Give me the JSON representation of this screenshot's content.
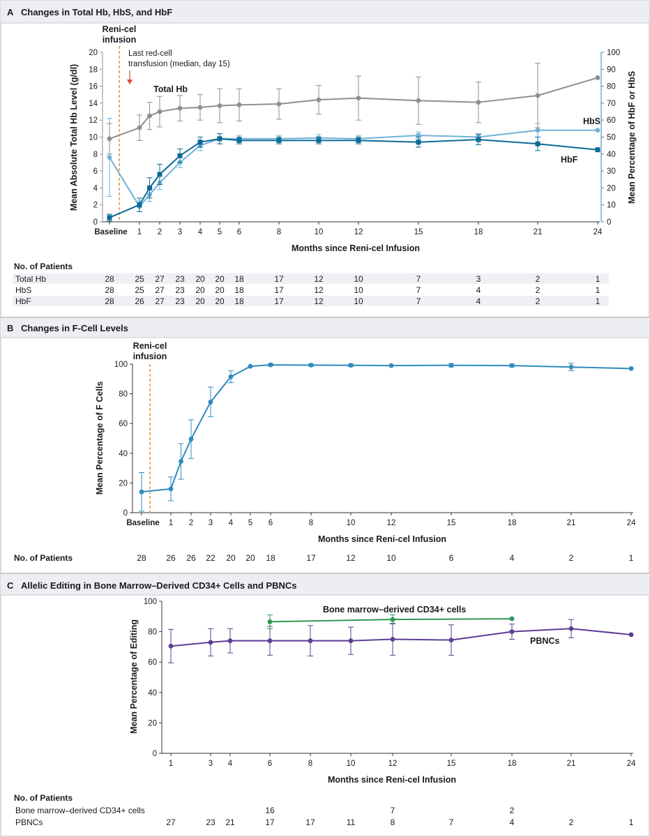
{
  "panels": [
    {
      "label": "A",
      "title": "Changes in Total Hb, HbS, and HbF"
    },
    {
      "label": "B",
      "title": "Changes in F-Cell Levels"
    },
    {
      "label": "C",
      "title": "Allelic Editing in Bone Marrow–Derived CD34+ Cells and PBNCs"
    }
  ],
  "colors": {
    "total_hb": "#8f8f8f",
    "hbs": "#6fb1d8",
    "hbf": "#0c6b96",
    "fcell": "#2f8bbf",
    "cd34": "#2e9a52",
    "pbnc": "#5c3e95",
    "infusion": "#ef8a2a",
    "transfusion": "#d9492f"
  },
  "chart_data": [
    {
      "type": "line",
      "title": "Changes in Total Hb, HbS, and HbF",
      "xlabel": "Months since Reni-cel Infusion",
      "ylabel": "Mean Absolute Total Hb Level (g/dl)",
      "y2label": "Mean Percentage of HbF or HbS",
      "xticks": [
        "Baseline",
        "1",
        "2",
        "3",
        "4",
        "5",
        "6",
        "8",
        "10",
        "12",
        "15",
        "18",
        "21",
        "24"
      ],
      "ylim": [
        0,
        20
      ],
      "yticks": [
        "0",
        "2",
        "4",
        "6",
        "8",
        "10",
        "12",
        "14",
        "16",
        "18",
        "20"
      ],
      "y2lim": [
        0,
        100
      ],
      "y2ticks": [
        "0",
        "10",
        "20",
        "30",
        "40",
        "50",
        "60",
        "70",
        "80",
        "90",
        "100"
      ],
      "annotations": {
        "infusion": "Reni-cel infusion",
        "transfusion": "Last red-cell transfusion (median, day 15)"
      },
      "series": [
        {
          "name": "Total Hb",
          "axis": "left",
          "x": [
            0,
            1,
            1.5,
            2,
            3,
            4,
            5,
            6,
            8,
            10,
            12,
            15,
            18,
            21,
            24
          ],
          "y": [
            9.8,
            11.1,
            12.5,
            13.0,
            13.4,
            13.5,
            13.7,
            13.8,
            13.9,
            14.4,
            14.6,
            14.3,
            14.1,
            14.9,
            17.0
          ],
          "err": [
            1.8,
            1.5,
            1.6,
            1.8,
            1.5,
            1.5,
            2.0,
            1.9,
            1.8,
            1.7,
            2.6,
            2.8,
            2.4,
            3.8,
            null
          ]
        },
        {
          "name": "HbS",
          "axis": "right",
          "x": [
            0,
            1,
            1.5,
            2,
            3,
            4,
            5,
            6,
            8,
            10,
            12,
            15,
            18,
            21,
            24
          ],
          "y": [
            38,
            9,
            16,
            23,
            35,
            45,
            49,
            49,
            49,
            49.5,
            49,
            51,
            50,
            54,
            54
          ],
          "err": [
            23,
            3,
            4,
            4,
            3,
            3,
            3,
            2,
            2,
            2,
            2,
            2,
            2,
            4,
            null
          ]
        },
        {
          "name": "HbF",
          "axis": "right",
          "x": [
            0,
            1,
            1.5,
            2,
            3,
            4,
            5,
            6,
            8,
            10,
            12,
            15,
            18,
            21,
            24
          ],
          "y": [
            2.5,
            10,
            20,
            28,
            39,
            47,
            49,
            48,
            48,
            48,
            48,
            47,
            48.5,
            46,
            42.5
          ],
          "err": [
            2,
            4,
            6,
            6,
            4,
            3,
            3,
            2,
            2,
            2,
            2,
            3,
            3,
            4,
            null
          ]
        }
      ],
      "patients": {
        "header": "No. of Patients",
        "rows": [
          {
            "label": "Total Hb",
            "values": [
              "28",
              "25",
              "27",
              "23",
              "20",
              "20",
              "18",
              "17",
              "12",
              "10",
              "7",
              "3",
              "2",
              "1"
            ]
          },
          {
            "label": "HbS",
            "values": [
              "28",
              "25",
              "27",
              "23",
              "20",
              "20",
              "18",
              "17",
              "12",
              "10",
              "7",
              "4",
              "2",
              "1"
            ]
          },
          {
            "label": "HbF",
            "values": [
              "28",
              "26",
              "27",
              "23",
              "20",
              "20",
              "18",
              "17",
              "12",
              "10",
              "7",
              "4",
              "2",
              "1"
            ]
          }
        ]
      }
    },
    {
      "type": "line",
      "title": "Changes in F-Cell Levels",
      "xlabel": "Months since Reni-cel Infusion",
      "ylabel": "Mean Percentage of F Cells",
      "xticks": [
        "Baseline",
        "1",
        "2",
        "3",
        "4",
        "5",
        "6",
        "8",
        "10",
        "12",
        "15",
        "18",
        "21",
        "24"
      ],
      "ylim": [
        0,
        100
      ],
      "yticks": [
        "0",
        "20",
        "40",
        "60",
        "80",
        "100"
      ],
      "annotations": {
        "infusion": "Reni-cel infusion"
      },
      "series": [
        {
          "name": "",
          "x": [
            0,
            1,
            1.5,
            2,
            3,
            4,
            5,
            6,
            8,
            10,
            12,
            15,
            18,
            21,
            24
          ],
          "y": [
            14,
            16,
            34.5,
            49.5,
            74.5,
            91.5,
            98.5,
            99.5,
            99.3,
            99.2,
            99,
            99.2,
            99,
            98,
            97
          ],
          "err": [
            13,
            8,
            12,
            13,
            10,
            4,
            null,
            0.8,
            0.8,
            0.8,
            null,
            1.2,
            1,
            2.5,
            null
          ]
        }
      ],
      "patients": {
        "header": "No. of Patients",
        "rows": [
          {
            "label": "",
            "values": [
              "28",
              "26",
              "26",
              "22",
              "20",
              "20",
              "18",
              "17",
              "12",
              "10",
              "6",
              "4",
              "2",
              "1"
            ]
          }
        ]
      }
    },
    {
      "type": "line",
      "title": "Allelic Editing in Bone Marrow–Derived CD34+ Cells and PBNCs",
      "xlabel": "Months since Reni-cel Infusion",
      "ylabel": "Mean Percentage of Editing",
      "xticks": [
        "1",
        "3",
        "4",
        "6",
        "8",
        "10",
        "12",
        "15",
        "18",
        "21",
        "24"
      ],
      "ylim": [
        0,
        100
      ],
      "yticks": [
        "0",
        "20",
        "40",
        "60",
        "80",
        "100"
      ],
      "series": [
        {
          "name": "Bone marrow–derived CD34+ cells",
          "x": [
            6,
            12,
            18
          ],
          "y": [
            86.5,
            88,
            88.5
          ],
          "err": [
            4.5,
            3,
            null
          ]
        },
        {
          "name": "PBNCs",
          "x": [
            1,
            3,
            4,
            6,
            8,
            10,
            12,
            15,
            18,
            21,
            24
          ],
          "y": [
            70.5,
            73,
            74,
            74,
            74,
            74,
            75,
            74.5,
            80,
            82,
            78
          ],
          "err": [
            11,
            9,
            8,
            9.5,
            10,
            9,
            10.5,
            10,
            5,
            6,
            null
          ]
        }
      ],
      "patients": {
        "header": "No. of Patients",
        "rows": [
          {
            "label": "Bone marrow–derived CD34+ cells",
            "values": [
              "",
              "",
              "",
              "16",
              "",
              "",
              "7",
              "",
              "2",
              "",
              ""
            ]
          },
          {
            "label": "PBNCs",
            "values": [
              "27",
              "23",
              "21",
              "17",
              "17",
              "11",
              "8",
              "7",
              "4",
              "2",
              "1"
            ]
          }
        ]
      }
    }
  ]
}
